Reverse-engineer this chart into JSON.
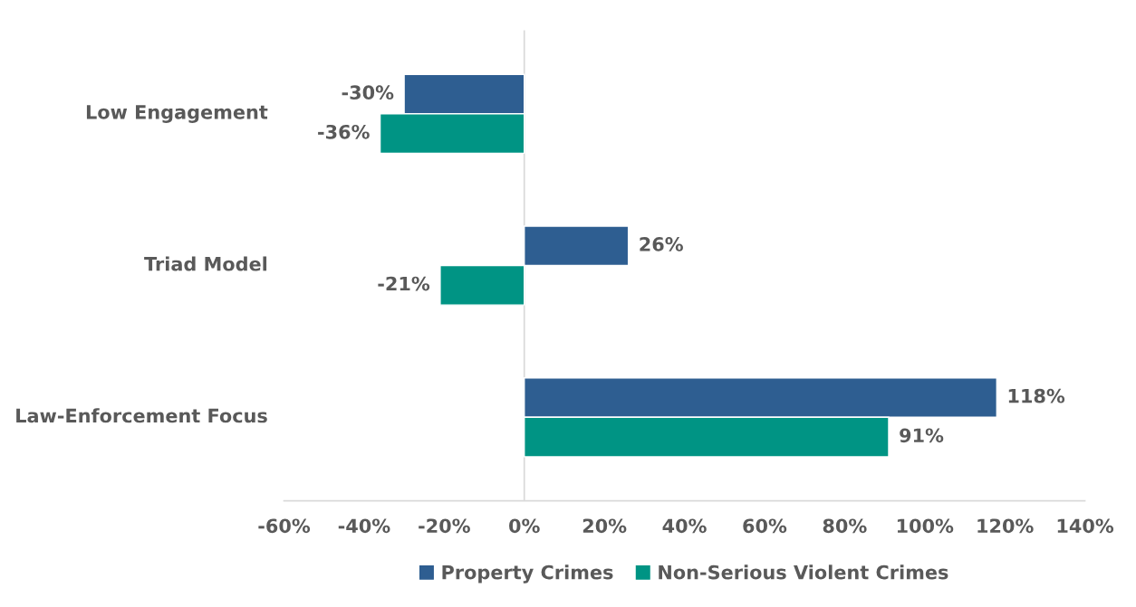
{
  "chart_data": {
    "type": "bar",
    "orientation": "horizontal",
    "categories": [
      "Low Engagement",
      "Triad Model",
      "Law-Enforcement Focus"
    ],
    "series": [
      {
        "name": "Property Crimes",
        "color": "#2e5e91",
        "values": [
          -30,
          26,
          118
        ],
        "value_labels": [
          "-30%",
          "26%",
          "118%"
        ]
      },
      {
        "name": "Non-Serious Violent Crimes",
        "color": "#009484",
        "values": [
          -36,
          -21,
          91
        ],
        "value_labels": [
          "-36%",
          "-21%",
          "91%"
        ]
      }
    ],
    "xlim": [
      -60,
      140
    ],
    "xticks": [
      {
        "value": -60,
        "label": "-60%"
      },
      {
        "value": -40,
        "label": "-40%"
      },
      {
        "value": -20,
        "label": "-20%"
      },
      {
        "value": 0,
        "label": "0%"
      },
      {
        "value": 20,
        "label": "20%"
      },
      {
        "value": 40,
        "label": "40%"
      },
      {
        "value": 60,
        "label": "60%"
      },
      {
        "value": 80,
        "label": "80%"
      },
      {
        "value": 100,
        "label": "100%"
      },
      {
        "value": 120,
        "label": "120%"
      },
      {
        "value": 140,
        "label": "140%"
      }
    ],
    "ref_lines": [
      {
        "axis": "x",
        "value": 0,
        "color": "#d9d9d9"
      }
    ],
    "grid": false,
    "legend": "bottom"
  }
}
